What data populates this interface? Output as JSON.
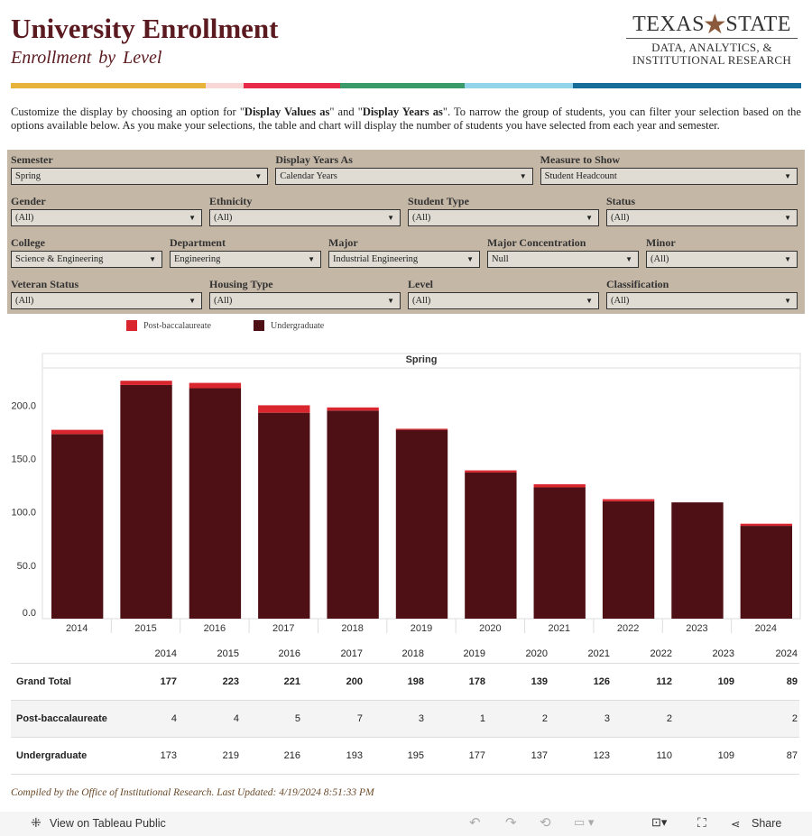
{
  "header": {
    "title": "University Enrollment",
    "subtitle": "Enrollment by Level",
    "logo": {
      "top_left": "TEXAS",
      "top_right": "STATE",
      "line1": "DATA, ANALYTICS, &",
      "line2": "INSTITUTIONAL RESEARCH"
    }
  },
  "stripe_colors": [
    "#e8b33a",
    "#f8d7d7",
    "#e8294a",
    "#3a9a6a",
    "#93d4ea",
    "#176d99"
  ],
  "intro": {
    "p1": "Customize the display by choosing an option for \"",
    "b1": "Display Values as",
    "p2": "\" and \"",
    "b2": "Display Years as",
    "p3": "\". To narrow the group of students, you can filter your selection based on the options available below. As you make your selections, the table and chart will display the number of students you have selected from each year and semester."
  },
  "filters": [
    {
      "label": "Semester",
      "value": "Spring"
    },
    {
      "label": "Display Years As",
      "value": "Calendar Years"
    },
    {
      "label": "Measure to Show",
      "value": "Student Headcount"
    },
    {
      "label": "Gender",
      "value": "(All)"
    },
    {
      "label": "Ethnicity",
      "value": "(All)"
    },
    {
      "label": "Student Type",
      "value": "(All)"
    },
    {
      "label": "Status",
      "value": "(All)"
    },
    {
      "label": "College",
      "value": "Science & Engineering"
    },
    {
      "label": "Department",
      "value": "Engineering"
    },
    {
      "label": "Major",
      "value": "Industrial Engineering"
    },
    {
      "label": "Major Concentration",
      "value": "Null"
    },
    {
      "label": "Minor",
      "value": "(All)"
    },
    {
      "label": "Veteran Status",
      "value": "(All)"
    },
    {
      "label": "Housing Type",
      "value": "(All)"
    },
    {
      "label": "Level",
      "value": "(All)"
    },
    {
      "label": "Classification",
      "value": "(All)"
    }
  ],
  "chart_data": {
    "type": "bar",
    "stacked": true,
    "title": "Spring",
    "categories": [
      "2014",
      "2015",
      "2016",
      "2017",
      "2018",
      "2019",
      "2020",
      "2021",
      "2022",
      "2023",
      "2024"
    ],
    "series": [
      {
        "name": "Undergraduate",
        "color": "#4e1015",
        "values": [
          173,
          219,
          216,
          193,
          195,
          177,
          137,
          123,
          110,
          109,
          87
        ]
      },
      {
        "name": "Post-baccalaureate",
        "color": "#d9262e",
        "values": [
          4,
          4,
          5,
          7,
          3,
          1,
          2,
          3,
          2,
          0,
          2
        ]
      }
    ],
    "yticks": [
      "0.0",
      "50.0",
      "100.0",
      "150.0",
      "200.0"
    ],
    "ylim": [
      0,
      235
    ],
    "legend": "top-left"
  },
  "table": {
    "years": [
      "2014",
      "2015",
      "2016",
      "2017",
      "2018",
      "2019",
      "2020",
      "2021",
      "2022",
      "2023",
      "2024"
    ],
    "rows": [
      {
        "label": "Grand Total",
        "values": [
          "177",
          "223",
          "221",
          "200",
          "198",
          "178",
          "139",
          "126",
          "112",
          "109",
          "89"
        ]
      },
      {
        "label": "Post-baccalaureate",
        "values": [
          "4",
          "4",
          "5",
          "7",
          "3",
          "1",
          "2",
          "3",
          "2",
          "",
          "2"
        ]
      },
      {
        "label": "Undergraduate",
        "values": [
          "173",
          "219",
          "216",
          "193",
          "195",
          "177",
          "137",
          "123",
          "110",
          "109",
          "87"
        ]
      }
    ]
  },
  "footer": "Compiled by the Office of Institutional Research. Last Updated: 4/19/2024 8:51:33 PM",
  "toolbar": {
    "view_label": "View on Tableau Public",
    "share_label": "Share"
  }
}
